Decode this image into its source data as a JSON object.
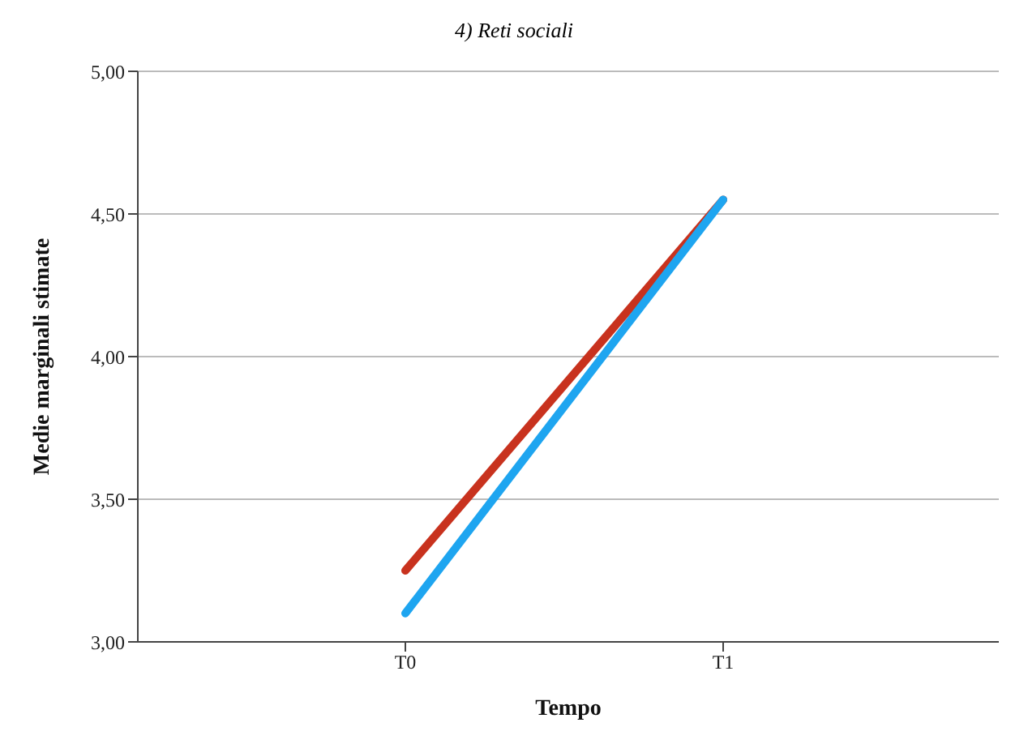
{
  "chart_data": {
    "type": "line",
    "title": "4) Reti sociali",
    "xlabel": "Tempo",
    "ylabel": "Medie marginali stimate",
    "categories": [
      "T0",
      "T1"
    ],
    "series": [
      {
        "color": "#c8321e",
        "values": [
          3.25,
          4.55
        ]
      },
      {
        "color": "#1ea5f0",
        "values": [
          3.1,
          4.55
        ]
      }
    ],
    "ylim": [
      3,
      5
    ],
    "yticks": [
      {
        "value": 3,
        "label": "3,00"
      },
      {
        "value": 3.5,
        "label": "3,50"
      },
      {
        "value": 4,
        "label": "4,00"
      },
      {
        "value": 4.5,
        "label": "4,50"
      },
      {
        "value": 5,
        "label": "5,00"
      }
    ],
    "grid": "y",
    "legend": false,
    "marker": "none",
    "line_style": "solid"
  }
}
